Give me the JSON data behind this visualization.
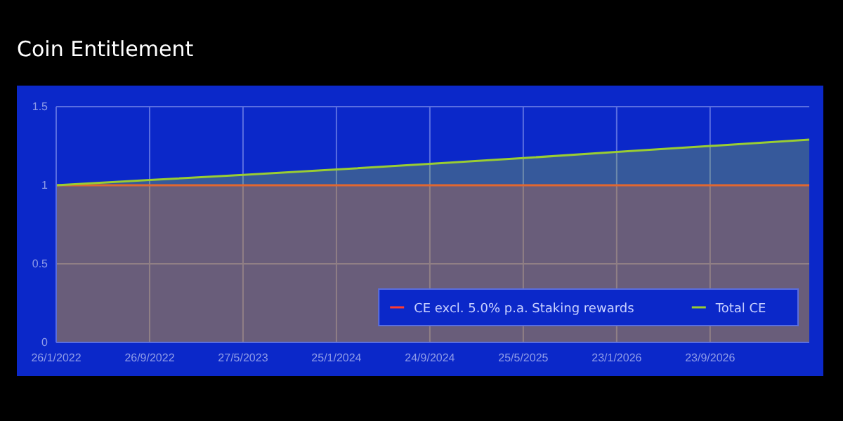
{
  "chart_data": {
    "type": "area",
    "title": "Coin Entitlement",
    "x": [
      "2022-01-26",
      "2022-09-26",
      "2023-05-27",
      "2024-01-25",
      "2024-09-24",
      "2025-05-25",
      "2026-01-23",
      "2026-09-23",
      "2027-06-08"
    ],
    "series": [
      {
        "name": "CE excl. 5.0% p.a. Staking rewards",
        "color": "#ff3b30",
        "values": [
          1,
          1,
          1,
          1,
          1,
          1,
          1,
          1,
          1
        ]
      },
      {
        "name": "Total CE",
        "color": "#9acd32",
        "values": [
          1,
          1.033,
          1.066,
          1.1,
          1.136,
          1.173,
          1.212,
          1.25,
          1.29
        ]
      }
    ],
    "xlim": [
      "2022-01-26",
      "2027-06-08"
    ],
    "xticks": [
      {
        "value": "2022-01-26",
        "label": "26/1/2022"
      },
      {
        "value": "2022-09-26",
        "label": "26/9/2022"
      },
      {
        "value": "2023-05-27",
        "label": "27/5/2023"
      },
      {
        "value": "2024-01-25",
        "label": "25/1/2024"
      },
      {
        "value": "2024-09-24",
        "label": "24/9/2024"
      },
      {
        "value": "2025-05-25",
        "label": "25/5/2025"
      },
      {
        "value": "2026-01-23",
        "label": "23/1/2026"
      },
      {
        "value": "2026-09-23",
        "label": "23/9/2026"
      }
    ],
    "ylim": [
      0,
      1.5
    ],
    "yticks": [
      0,
      0.5,
      1,
      1.5
    ],
    "grid": true,
    "legend": "bottom right"
  }
}
